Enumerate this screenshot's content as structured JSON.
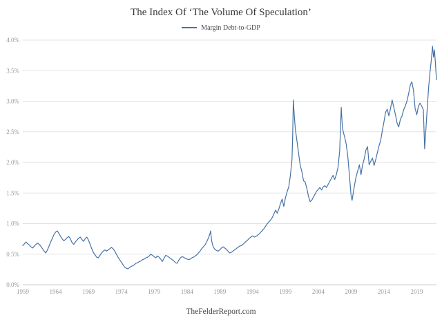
{
  "page": {
    "title": "The Index Of ‘The Volume Of Speculation’",
    "footer": "TheFelderReport.com"
  },
  "legend": {
    "label": "Margin Debt-to-GDP"
  },
  "chart_data": {
    "type": "line",
    "title": "The Index Of ‘The Volume Of Speculation’",
    "xlabel": "",
    "ylabel": "",
    "grid": "horizontal-only",
    "legend_position": "top-center",
    "xlim": [
      1959,
      2022
    ],
    "ylim": [
      0,
      4
    ],
    "x_ticks": [
      1959,
      1964,
      1969,
      1974,
      1979,
      1984,
      1989,
      1994,
      1999,
      2004,
      2009,
      2014,
      2019
    ],
    "y_ticks": [
      {
        "value": 0.0,
        "label": "0.0%"
      },
      {
        "value": 0.5,
        "label": "0.5%"
      },
      {
        "value": 1.0,
        "label": "1.0%"
      },
      {
        "value": 1.5,
        "label": "1.5%"
      },
      {
        "value": 2.0,
        "label": "2.0%"
      },
      {
        "value": 2.5,
        "label": "2.5%"
      },
      {
        "value": 3.0,
        "label": "3.0%"
      },
      {
        "value": 3.5,
        "label": "3.5%"
      },
      {
        "value": 4.0,
        "label": "4.0%"
      }
    ],
    "series": [
      {
        "name": "Margin Debt-to-GDP",
        "color": "#4572a7",
        "unit": "%",
        "points": [
          [
            1959,
            0.64
          ],
          [
            1959.25,
            0.67
          ],
          [
            1959.5,
            0.7
          ],
          [
            1959.75,
            0.67
          ],
          [
            1960,
            0.65
          ],
          [
            1960.25,
            0.62
          ],
          [
            1960.5,
            0.6
          ],
          [
            1960.75,
            0.63
          ],
          [
            1961,
            0.66
          ],
          [
            1961.25,
            0.68
          ],
          [
            1961.5,
            0.66
          ],
          [
            1961.75,
            0.63
          ],
          [
            1962,
            0.59
          ],
          [
            1962.25,
            0.55
          ],
          [
            1962.5,
            0.52
          ],
          [
            1962.75,
            0.57
          ],
          [
            1963,
            0.63
          ],
          [
            1963.25,
            0.7
          ],
          [
            1963.5,
            0.76
          ],
          [
            1963.75,
            0.82
          ],
          [
            1964,
            0.86
          ],
          [
            1964.25,
            0.88
          ],
          [
            1964.5,
            0.84
          ],
          [
            1964.75,
            0.79
          ],
          [
            1965,
            0.75
          ],
          [
            1965.25,
            0.72
          ],
          [
            1965.5,
            0.74
          ],
          [
            1965.75,
            0.77
          ],
          [
            1966,
            0.79
          ],
          [
            1966.25,
            0.75
          ],
          [
            1966.5,
            0.69
          ],
          [
            1966.75,
            0.66
          ],
          [
            1967,
            0.7
          ],
          [
            1967.25,
            0.73
          ],
          [
            1967.5,
            0.76
          ],
          [
            1967.75,
            0.78
          ],
          [
            1968,
            0.74
          ],
          [
            1968.25,
            0.71
          ],
          [
            1968.5,
            0.75
          ],
          [
            1968.75,
            0.78
          ],
          [
            1969,
            0.73
          ],
          [
            1969.25,
            0.66
          ],
          [
            1969.5,
            0.59
          ],
          [
            1969.75,
            0.53
          ],
          [
            1970,
            0.49
          ],
          [
            1970.25,
            0.45
          ],
          [
            1970.5,
            0.44
          ],
          [
            1970.75,
            0.48
          ],
          [
            1971,
            0.52
          ],
          [
            1971.25,
            0.55
          ],
          [
            1971.5,
            0.57
          ],
          [
            1971.75,
            0.55
          ],
          [
            1972,
            0.57
          ],
          [
            1972.25,
            0.59
          ],
          [
            1972.5,
            0.61
          ],
          [
            1972.75,
            0.59
          ],
          [
            1973,
            0.55
          ],
          [
            1973.25,
            0.5
          ],
          [
            1973.5,
            0.45
          ],
          [
            1973.75,
            0.41
          ],
          [
            1974,
            0.37
          ],
          [
            1974.25,
            0.33
          ],
          [
            1974.5,
            0.29
          ],
          [
            1974.75,
            0.27
          ],
          [
            1975,
            0.26
          ],
          [
            1975.25,
            0.28
          ],
          [
            1975.5,
            0.3
          ],
          [
            1975.75,
            0.31
          ],
          [
            1976,
            0.33
          ],
          [
            1976.25,
            0.35
          ],
          [
            1976.5,
            0.36
          ],
          [
            1976.75,
            0.38
          ],
          [
            1977,
            0.39
          ],
          [
            1977.25,
            0.41
          ],
          [
            1977.5,
            0.42
          ],
          [
            1977.75,
            0.44
          ],
          [
            1978,
            0.45
          ],
          [
            1978.25,
            0.47
          ],
          [
            1978.5,
            0.5
          ],
          [
            1978.75,
            0.48
          ],
          [
            1979,
            0.46
          ],
          [
            1979.25,
            0.44
          ],
          [
            1979.5,
            0.47
          ],
          [
            1979.75,
            0.45
          ],
          [
            1980,
            0.42
          ],
          [
            1980.25,
            0.38
          ],
          [
            1980.5,
            0.43
          ],
          [
            1980.75,
            0.48
          ],
          [
            1981,
            0.47
          ],
          [
            1981.25,
            0.45
          ],
          [
            1981.5,
            0.43
          ],
          [
            1981.75,
            0.41
          ],
          [
            1982,
            0.39
          ],
          [
            1982.25,
            0.36
          ],
          [
            1982.5,
            0.35
          ],
          [
            1982.75,
            0.4
          ],
          [
            1983,
            0.44
          ],
          [
            1983.25,
            0.46
          ],
          [
            1983.5,
            0.45
          ],
          [
            1983.75,
            0.43
          ],
          [
            1984,
            0.42
          ],
          [
            1984.25,
            0.41
          ],
          [
            1984.5,
            0.42
          ],
          [
            1984.75,
            0.44
          ],
          [
            1985,
            0.45
          ],
          [
            1985.25,
            0.47
          ],
          [
            1985.5,
            0.49
          ],
          [
            1985.75,
            0.52
          ],
          [
            1986,
            0.55
          ],
          [
            1986.25,
            0.59
          ],
          [
            1986.5,
            0.62
          ],
          [
            1986.75,
            0.65
          ],
          [
            1987,
            0.7
          ],
          [
            1987.25,
            0.76
          ],
          [
            1987.5,
            0.83
          ],
          [
            1987.6,
            0.88
          ],
          [
            1987.75,
            0.72
          ],
          [
            1988,
            0.62
          ],
          [
            1988.25,
            0.58
          ],
          [
            1988.5,
            0.56
          ],
          [
            1988.75,
            0.55
          ],
          [
            1989,
            0.57
          ],
          [
            1989.25,
            0.6
          ],
          [
            1989.5,
            0.62
          ],
          [
            1989.75,
            0.6
          ],
          [
            1990,
            0.58
          ],
          [
            1990.25,
            0.55
          ],
          [
            1990.5,
            0.52
          ],
          [
            1990.75,
            0.53
          ],
          [
            1991,
            0.55
          ],
          [
            1991.25,
            0.57
          ],
          [
            1991.5,
            0.59
          ],
          [
            1991.75,
            0.61
          ],
          [
            1992,
            0.63
          ],
          [
            1992.25,
            0.64
          ],
          [
            1992.5,
            0.66
          ],
          [
            1992.75,
            0.68
          ],
          [
            1993,
            0.71
          ],
          [
            1993.25,
            0.73
          ],
          [
            1993.5,
            0.76
          ],
          [
            1993.75,
            0.78
          ],
          [
            1994,
            0.8
          ],
          [
            1994.25,
            0.78
          ],
          [
            1994.5,
            0.79
          ],
          [
            1994.75,
            0.81
          ],
          [
            1995,
            0.83
          ],
          [
            1995.25,
            0.86
          ],
          [
            1995.5,
            0.89
          ],
          [
            1995.75,
            0.92
          ],
          [
            1996,
            0.96
          ],
          [
            1996.25,
            1
          ],
          [
            1996.5,
            1.03
          ],
          [
            1996.75,
            1.06
          ],
          [
            1997,
            1.1
          ],
          [
            1997.25,
            1.16
          ],
          [
            1997.5,
            1.22
          ],
          [
            1997.75,
            1.17
          ],
          [
            1998,
            1.24
          ],
          [
            1998.25,
            1.33
          ],
          [
            1998.5,
            1.4
          ],
          [
            1998.75,
            1.28
          ],
          [
            1999,
            1.42
          ],
          [
            1999.25,
            1.52
          ],
          [
            1999.5,
            1.6
          ],
          [
            1999.75,
            1.78
          ],
          [
            2000,
            2.05
          ],
          [
            2000.1,
            2.45
          ],
          [
            2000.2,
            3.02
          ],
          [
            2000.35,
            2.75
          ],
          [
            2000.5,
            2.55
          ],
          [
            2000.75,
            2.35
          ],
          [
            2001,
            2.15
          ],
          [
            2001.25,
            1.95
          ],
          [
            2001.5,
            1.85
          ],
          [
            2001.75,
            1.7
          ],
          [
            2002,
            1.68
          ],
          [
            2002.25,
            1.58
          ],
          [
            2002.5,
            1.45
          ],
          [
            2002.75,
            1.36
          ],
          [
            2003,
            1.38
          ],
          [
            2003.25,
            1.43
          ],
          [
            2003.5,
            1.48
          ],
          [
            2003.75,
            1.53
          ],
          [
            2004,
            1.56
          ],
          [
            2004.25,
            1.59
          ],
          [
            2004.5,
            1.55
          ],
          [
            2004.75,
            1.6
          ],
          [
            2005,
            1.62
          ],
          [
            2005.25,
            1.59
          ],
          [
            2005.5,
            1.64
          ],
          [
            2005.75,
            1.69
          ],
          [
            2006,
            1.74
          ],
          [
            2006.25,
            1.79
          ],
          [
            2006.5,
            1.72
          ],
          [
            2006.75,
            1.8
          ],
          [
            2007,
            1.92
          ],
          [
            2007.25,
            2.18
          ],
          [
            2007.5,
            2.9
          ],
          [
            2007.65,
            2.6
          ],
          [
            2007.8,
            2.5
          ],
          [
            2008,
            2.42
          ],
          [
            2008.25,
            2.3
          ],
          [
            2008.5,
            2.1
          ],
          [
            2008.75,
            1.78
          ],
          [
            2009,
            1.45
          ],
          [
            2009.15,
            1.38
          ],
          [
            2009.3,
            1.48
          ],
          [
            2009.5,
            1.62
          ],
          [
            2009.75,
            1.76
          ],
          [
            2010,
            1.86
          ],
          [
            2010.25,
            1.96
          ],
          [
            2010.5,
            1.8
          ],
          [
            2010.75,
            1.96
          ],
          [
            2011,
            2.06
          ],
          [
            2011.25,
            2.2
          ],
          [
            2011.5,
            2.26
          ],
          [
            2011.75,
            1.96
          ],
          [
            2012,
            2.02
          ],
          [
            2012.25,
            2.07
          ],
          [
            2012.5,
            1.95
          ],
          [
            2012.75,
            2.05
          ],
          [
            2013,
            2.16
          ],
          [
            2013.25,
            2.27
          ],
          [
            2013.5,
            2.36
          ],
          [
            2013.75,
            2.52
          ],
          [
            2014,
            2.66
          ],
          [
            2014.25,
            2.82
          ],
          [
            2014.5,
            2.87
          ],
          [
            2014.75,
            2.76
          ],
          [
            2015,
            2.88
          ],
          [
            2015.25,
            3.02
          ],
          [
            2015.5,
            2.9
          ],
          [
            2015.75,
            2.78
          ],
          [
            2016,
            2.64
          ],
          [
            2016.25,
            2.58
          ],
          [
            2016.5,
            2.7
          ],
          [
            2016.75,
            2.76
          ],
          [
            2017,
            2.86
          ],
          [
            2017.25,
            2.92
          ],
          [
            2017.5,
            3
          ],
          [
            2017.75,
            3.12
          ],
          [
            2018,
            3.26
          ],
          [
            2018.25,
            3.32
          ],
          [
            2018.5,
            3.18
          ],
          [
            2018.75,
            2.88
          ],
          [
            2019,
            2.78
          ],
          [
            2019.25,
            2.92
          ],
          [
            2019.5,
            2.97
          ],
          [
            2019.75,
            2.92
          ],
          [
            2020,
            2.86
          ],
          [
            2020.2,
            2.22
          ],
          [
            2020.4,
            2.56
          ],
          [
            2020.6,
            2.9
          ],
          [
            2020.8,
            3.22
          ],
          [
            2021,
            3.46
          ],
          [
            2021.2,
            3.66
          ],
          [
            2021.4,
            3.9
          ],
          [
            2021.55,
            3.72
          ],
          [
            2021.7,
            3.84
          ],
          [
            2021.85,
            3.6
          ],
          [
            2022,
            3.35
          ]
        ]
      }
    ]
  }
}
